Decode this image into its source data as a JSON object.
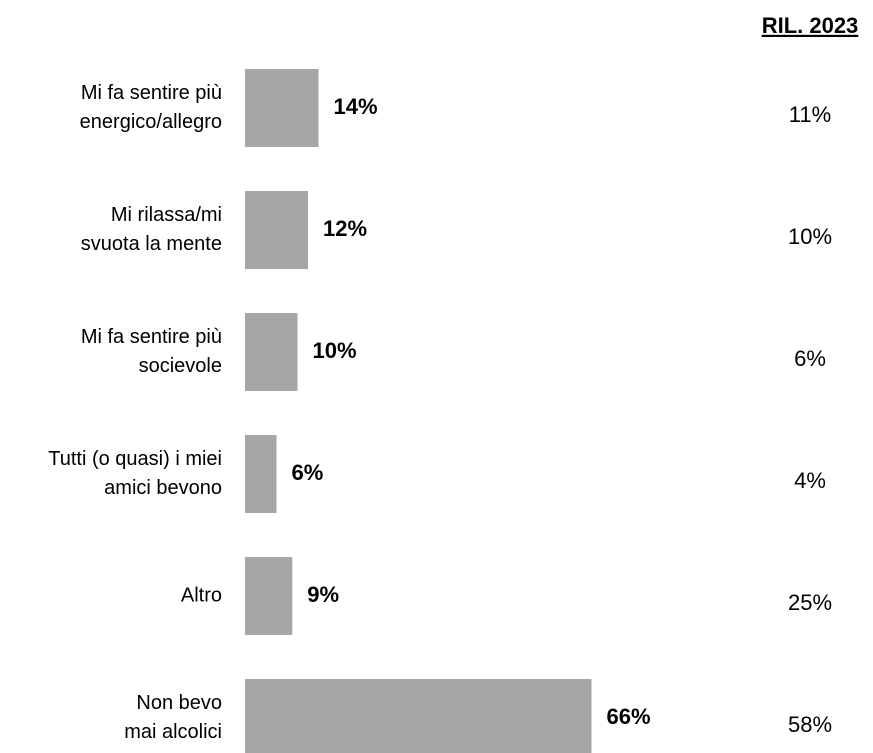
{
  "chart_data": {
    "type": "bar",
    "categories": [
      [
        "Mi fa sentire più",
        "energico/allegro"
      ],
      [
        "Mi rilassa/mi",
        "svuota la mente"
      ],
      [
        "Mi fa sentire più",
        "socievole"
      ],
      [
        "Tutti (o quasi) i miei",
        "amici bevono"
      ],
      [
        "Altro"
      ],
      [
        "Non bevo",
        "mai alcolici"
      ]
    ],
    "values": [
      14,
      12,
      10,
      6,
      9,
      66
    ],
    "value_labels": [
      "14%",
      "12%",
      "10%",
      "6%",
      "9%",
      "66%"
    ],
    "color": "#a6a6a6",
    "comparison": {
      "name": "RIL. 2023",
      "values": [
        11,
        10,
        6,
        4,
        25,
        58
      ],
      "value_labels": [
        "11%",
        "10%",
        "6%",
        "4%",
        "25%",
        "58%"
      ]
    }
  }
}
